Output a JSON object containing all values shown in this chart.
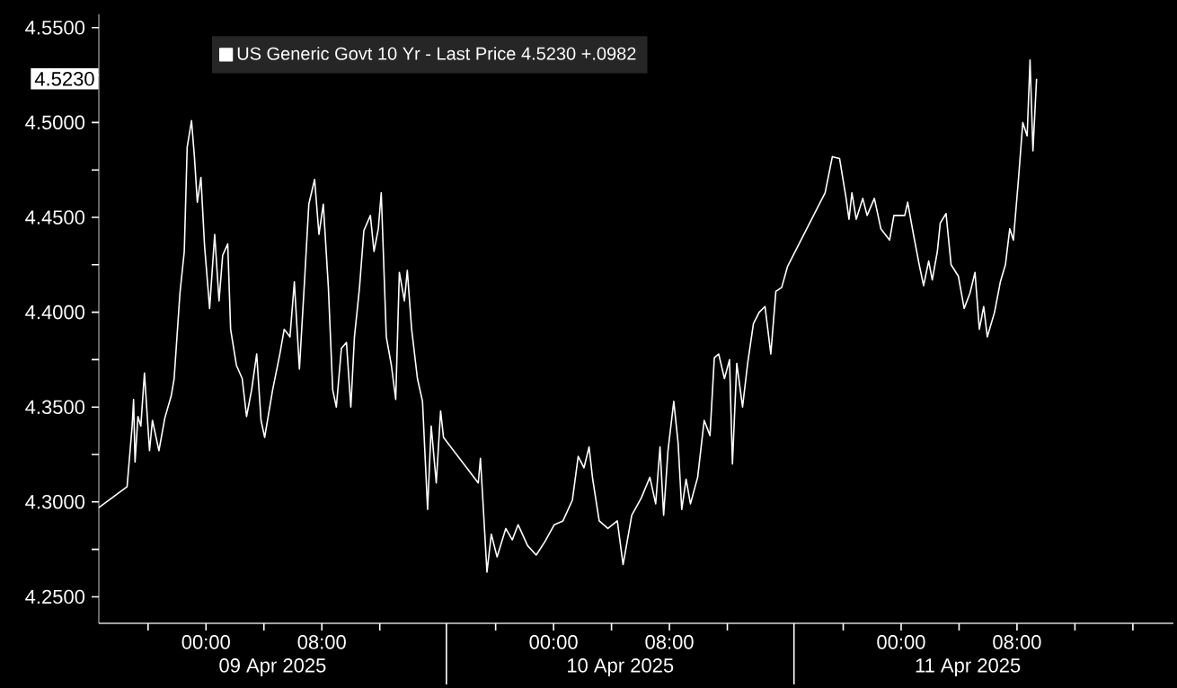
{
  "chart_data": {
    "type": "line",
    "x": [
      "2025-04-08T16:36",
      "2025-04-08T18:33",
      "2025-04-08T18:54",
      "2025-04-08T19:00",
      "2025-04-08T19:06",
      "2025-04-08T19:18",
      "2025-04-08T19:30",
      "2025-04-08T19:45",
      "2025-04-08T20:06",
      "2025-04-08T20:18",
      "2025-04-08T20:45",
      "2025-04-08T21:09",
      "2025-04-08T21:36",
      "2025-04-08T21:48",
      "2025-04-08T22:12",
      "2025-04-08T22:30",
      "2025-04-08T22:42",
      "2025-04-08T23:00",
      "2025-04-08T23:12",
      "2025-04-08T23:24",
      "2025-04-08T23:39",
      "2025-04-08T23:54",
      "2025-04-09T00:15",
      "2025-04-09T00:36",
      "2025-04-09T00:54",
      "2025-04-09T01:09",
      "2025-04-09T01:30",
      "2025-04-09T01:42",
      "2025-04-09T02:06",
      "2025-04-09T02:30",
      "2025-04-09T02:48",
      "2025-04-09T03:09",
      "2025-04-09T03:30",
      "2025-04-09T03:48",
      "2025-04-09T04:03",
      "2025-04-09T04:36",
      "2025-04-09T05:06",
      "2025-04-09T05:24",
      "2025-04-09T05:48",
      "2025-04-09T06:06",
      "2025-04-09T06:27",
      "2025-04-09T06:48",
      "2025-04-09T07:06",
      "2025-04-09T07:30",
      "2025-04-09T07:48",
      "2025-04-09T08:06",
      "2025-04-09T08:27",
      "2025-04-09T08:45",
      "2025-04-09T09:00",
      "2025-04-09T09:21",
      "2025-04-09T09:42",
      "2025-04-09T10:00",
      "2025-04-09T10:15",
      "2025-04-09T10:36",
      "2025-04-09T10:54",
      "2025-04-09T11:21",
      "2025-04-09T11:36",
      "2025-04-09T11:54",
      "2025-04-09T12:06",
      "2025-04-09T12:27",
      "2025-04-09T12:48",
      "2025-04-09T13:06",
      "2025-04-09T13:21",
      "2025-04-09T13:42",
      "2025-04-09T13:54",
      "2025-04-09T14:12",
      "2025-04-09T14:36",
      "2025-04-09T14:57",
      "2025-04-09T15:18",
      "2025-04-09T15:33",
      "2025-04-09T15:54",
      "2025-04-09T16:12",
      "2025-04-09T16:24",
      "2025-04-09T18:48",
      "2025-04-09T18:57",
      "2025-04-09T19:12",
      "2025-04-09T19:24",
      "2025-04-09T19:42",
      "2025-04-09T20:06",
      "2025-04-09T20:42",
      "2025-04-09T21:09",
      "2025-04-09T21:33",
      "2025-04-09T22:12",
      "2025-04-09T22:48",
      "2025-04-09T23:24",
      "2025-04-10T00:03",
      "2025-04-10T00:39",
      "2025-04-10T01:18",
      "2025-04-10T01:42",
      "2025-04-10T02:06",
      "2025-04-10T02:27",
      "2025-04-10T02:42",
      "2025-04-10T03:09",
      "2025-04-10T03:45",
      "2025-04-10T04:24",
      "2025-04-10T04:48",
      "2025-04-10T05:24",
      "2025-04-10T06:03",
      "2025-04-10T06:39",
      "2025-04-10T07:03",
      "2025-04-10T07:21",
      "2025-04-10T07:36",
      "2025-04-10T07:54",
      "2025-04-10T08:18",
      "2025-04-10T08:36",
      "2025-04-10T08:51",
      "2025-04-10T09:09",
      "2025-04-10T09:27",
      "2025-04-10T09:57",
      "2025-04-10T10:24",
      "2025-04-10T10:48",
      "2025-04-10T11:06",
      "2025-04-10T11:24",
      "2025-04-10T11:48",
      "2025-04-10T12:09",
      "2025-04-10T12:21",
      "2025-04-10T12:39",
      "2025-04-10T13:03",
      "2025-04-10T13:24",
      "2025-04-10T13:48",
      "2025-04-10T14:12",
      "2025-04-10T14:36",
      "2025-04-10T15:00",
      "2025-04-10T15:21",
      "2025-04-10T15:45",
      "2025-04-10T16:09",
      "2025-04-10T18:45",
      "2025-04-10T19:15",
      "2025-04-10T19:45",
      "2025-04-10T20:12",
      "2025-04-10T20:24",
      "2025-04-10T20:36",
      "2025-04-10T20:54",
      "2025-04-10T21:21",
      "2025-04-10T21:39",
      "2025-04-10T22:09",
      "2025-04-10T22:36",
      "2025-04-10T23:12",
      "2025-04-10T23:30",
      "2025-04-11T00:15",
      "2025-04-11T00:27",
      "2025-04-11T00:51",
      "2025-04-11T01:15",
      "2025-04-11T01:33",
      "2025-04-11T01:54",
      "2025-04-11T02:09",
      "2025-04-11T02:30",
      "2025-04-11T02:42",
      "2025-04-11T03:06",
      "2025-04-11T03:27",
      "2025-04-11T03:57",
      "2025-04-11T04:21",
      "2025-04-11T04:45",
      "2025-04-11T05:06",
      "2025-04-11T05:24",
      "2025-04-11T05:42",
      "2025-04-11T05:57",
      "2025-04-11T06:27",
      "2025-04-11T06:51",
      "2025-04-11T07:12",
      "2025-04-11T07:30",
      "2025-04-11T07:45",
      "2025-04-11T08:06",
      "2025-04-11T08:24",
      "2025-04-11T08:42",
      "2025-04-11T08:54",
      "2025-04-11T09:06",
      "2025-04-11T09:21"
    ],
    "series": [
      {
        "name": "US Generic Govt 10 Yr - Last Price  4.5230   +.0982",
        "color": "#ffffff",
        "values": [
          4.297,
          4.308,
          4.34,
          4.354,
          4.321,
          4.345,
          4.34,
          4.368,
          4.327,
          4.343,
          4.327,
          4.344,
          4.356,
          4.365,
          4.41,
          4.432,
          4.487,
          4.501,
          4.482,
          4.458,
          4.471,
          4.435,
          4.402,
          4.441,
          4.406,
          4.43,
          4.436,
          4.391,
          4.372,
          4.365,
          4.345,
          4.359,
          4.378,
          4.343,
          4.334,
          4.359,
          4.378,
          4.391,
          4.387,
          4.416,
          4.37,
          4.416,
          4.457,
          4.47,
          4.441,
          4.457,
          4.413,
          4.359,
          4.35,
          4.381,
          4.384,
          4.35,
          4.387,
          4.413,
          4.443,
          4.451,
          4.432,
          4.444,
          4.463,
          4.387,
          4.372,
          4.354,
          4.421,
          4.406,
          4.422,
          4.391,
          4.365,
          4.353,
          4.296,
          4.34,
          4.31,
          4.348,
          4.334,
          4.31,
          4.323,
          4.29,
          4.263,
          4.283,
          4.271,
          4.286,
          4.28,
          4.288,
          4.277,
          4.272,
          4.279,
          4.288,
          4.29,
          4.301,
          4.324,
          4.318,
          4.329,
          4.312,
          4.29,
          4.286,
          4.29,
          4.267,
          4.293,
          4.302,
          4.313,
          4.299,
          4.329,
          4.293,
          4.327,
          4.353,
          4.331,
          4.296,
          4.312,
          4.299,
          4.313,
          4.343,
          4.335,
          4.376,
          4.378,
          4.365,
          4.375,
          4.32,
          4.373,
          4.35,
          4.373,
          4.394,
          4.4,
          4.403,
          4.378,
          4.411,
          4.413,
          4.424,
          4.463,
          4.482,
          4.481,
          4.46,
          4.449,
          4.463,
          4.449,
          4.46,
          4.451,
          4.46,
          4.444,
          4.438,
          4.451,
          4.451,
          4.458,
          4.441,
          4.425,
          4.414,
          4.427,
          4.417,
          4.432,
          4.447,
          4.452,
          4.425,
          4.419,
          4.402,
          4.41,
          4.421,
          4.391,
          4.403,
          4.387,
          4.4,
          4.416,
          4.425,
          4.444,
          4.438,
          4.47,
          4.5,
          4.493,
          4.533,
          4.485,
          4.523
        ]
      }
    ],
    "xlim": [
      "2025-04-08T16:36",
      "2025-04-11T18:48"
    ],
    "xticks": [
      {
        "value": "2025-04-08T20:00",
        "label": null
      },
      {
        "value": "2025-04-09T00:00",
        "label": "00:00"
      },
      {
        "value": "2025-04-09T04:00",
        "label": null
      },
      {
        "value": "2025-04-09T08:00",
        "label": "08:00"
      },
      {
        "value": "2025-04-09T12:00",
        "label": null
      },
      {
        "value": "2025-04-09T20:00",
        "label": null
      },
      {
        "value": "2025-04-10T00:00",
        "label": "00:00"
      },
      {
        "value": "2025-04-10T04:00",
        "label": null
      },
      {
        "value": "2025-04-10T08:00",
        "label": "08:00"
      },
      {
        "value": "2025-04-10T12:00",
        "label": null
      },
      {
        "value": "2025-04-10T20:00",
        "label": null
      },
      {
        "value": "2025-04-11T00:00",
        "label": "00:00"
      },
      {
        "value": "2025-04-11T04:00",
        "label": null
      },
      {
        "value": "2025-04-11T08:00",
        "label": "08:00"
      },
      {
        "value": "2025-04-11T12:00",
        "label": null
      },
      {
        "value": "2025-04-11T16:00",
        "label": null
      }
    ],
    "x2lim": [
      "2025-04-08T16:36",
      "2025-04-11T18:48"
    ],
    "x2ticks": [
      {
        "value": "2025-04-09T04:36",
        "label": "09 Apr 2025"
      },
      {
        "value": "2025-04-10T04:36",
        "label": "10 Apr 2025"
      },
      {
        "value": "2025-04-11T04:36",
        "label": "11 Apr 2025"
      }
    ],
    "ylim": [
      4.236,
      4.557
    ],
    "yticks": [
      {
        "value": 4.25,
        "label": "4.2500"
      },
      {
        "value": 4.275,
        "label": null
      },
      {
        "value": 4.3,
        "label": "4.3000"
      },
      {
        "value": 4.325,
        "label": null
      },
      {
        "value": 4.35,
        "label": "4.3500"
      },
      {
        "value": 4.375,
        "label": null
      },
      {
        "value": 4.4,
        "label": "4.4000"
      },
      {
        "value": 4.425,
        "label": null
      },
      {
        "value": 4.45,
        "label": "4.4500"
      },
      {
        "value": 4.475,
        "label": null
      },
      {
        "value": 4.5,
        "label": "4.5000"
      },
      {
        "value": 4.525,
        "label": null
      },
      {
        "value": 4.55,
        "label": "4.5500"
      }
    ],
    "annotations": [
      {
        "text": "4.5230",
        "y": 4.523
      }
    ],
    "legend": "top left",
    "grid": false
  }
}
